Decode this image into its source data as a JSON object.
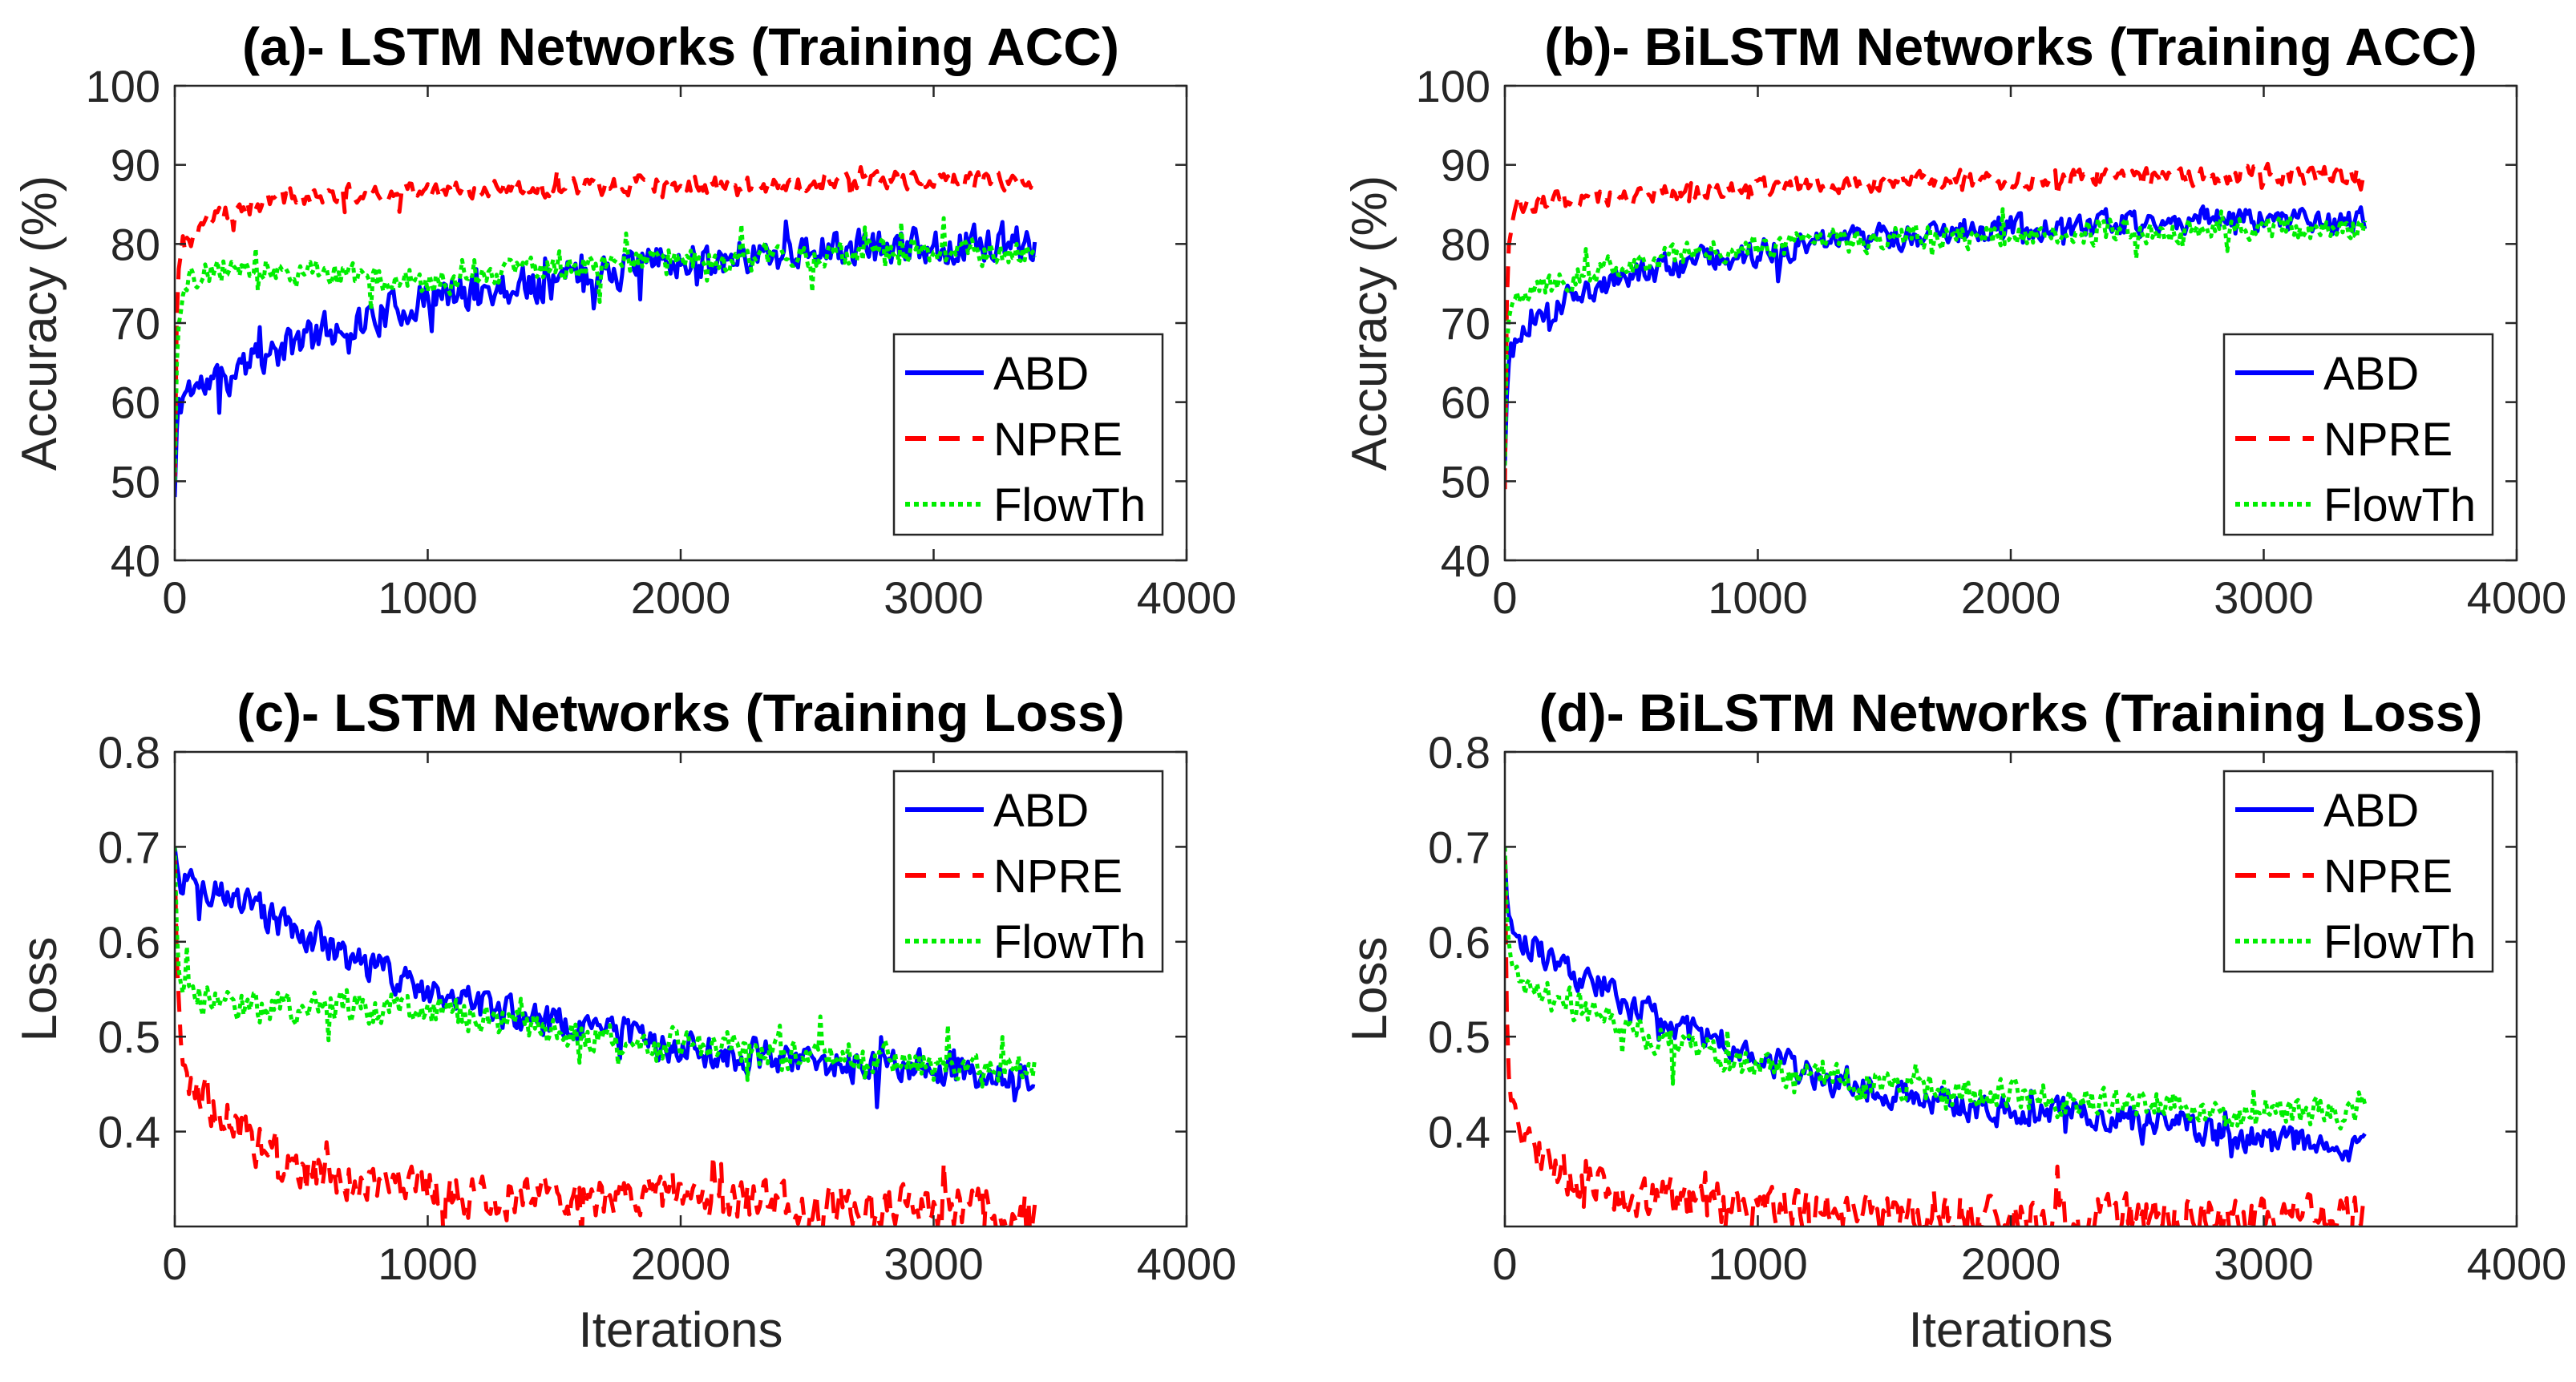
{
  "chart_data": [
    {
      "id": "a",
      "type": "line",
      "title": "(a)- LSTM Networks (Training ACC)",
      "xlabel": "",
      "ylabel": "Accuracy (%)",
      "xlim": [
        0,
        4000
      ],
      "ylim": [
        40,
        100
      ],
      "xticks": [
        "0",
        "1000",
        "2000",
        "3000",
        "4000"
      ],
      "yticks": [
        "40",
        "50",
        "60",
        "70",
        "80",
        "90",
        "100"
      ],
      "legend_position": "bottom-right",
      "grid": false,
      "x": [
        0,
        10,
        25,
        50,
        100,
        200,
        300,
        400,
        500,
        600,
        700,
        800,
        1000,
        1200,
        1400,
        1600,
        1800,
        2000,
        2200,
        2400,
        2600,
        2800,
        3000,
        3200,
        3400
      ],
      "series": [
        {
          "name": "ABD",
          "color": "#0000FF",
          "dash": "solid",
          "noise": 3.2,
          "seed": 11,
          "values": [
            48,
            58,
            60,
            62,
            62,
            63,
            65,
            66,
            68,
            69,
            70,
            71,
            73,
            74,
            75,
            76,
            77,
            78,
            78.5,
            79,
            79.2,
            79.5,
            79.8,
            80,
            80
          ]
        },
        {
          "name": "NPRE",
          "color": "#FF0000",
          "dash": "dashed",
          "noise": 1.6,
          "seed": 23,
          "values": [
            50,
            76,
            79,
            80,
            82,
            84,
            85,
            85.5,
            86,
            86,
            86.5,
            86.5,
            87,
            87,
            87,
            87,
            87.5,
            87.5,
            87.5,
            87.5,
            88,
            88,
            88,
            88,
            88
          ]
        },
        {
          "name": "FlowTh",
          "color": "#00EE00",
          "dash": "dotted",
          "noise": 2.2,
          "seed": 37,
          "values": [
            50,
            70,
            73,
            75,
            76,
            77,
            77,
            77,
            77,
            76,
            76,
            75.5,
            75,
            76,
            76.5,
            77,
            77.5,
            78,
            78,
            78.5,
            78.5,
            79,
            79,
            79,
            79
          ]
        }
      ]
    },
    {
      "id": "b",
      "type": "line",
      "title": "(b)- BiLSTM Networks (Training ACC)",
      "xlabel": "",
      "ylabel": "Accuracy (%)",
      "xlim": [
        0,
        4000
      ],
      "ylim": [
        40,
        100
      ],
      "xticks": [
        "0",
        "1000",
        "2000",
        "3000",
        "4000"
      ],
      "yticks": [
        "40",
        "50",
        "60",
        "70",
        "80",
        "90",
        "100"
      ],
      "legend_position": "bottom-right",
      "grid": false,
      "x": [
        0,
        10,
        25,
        50,
        100,
        200,
        300,
        400,
        500,
        600,
        700,
        800,
        1000,
        1200,
        1400,
        1600,
        1800,
        2000,
        2200,
        2400,
        2600,
        2800,
        3000,
        3200,
        3400
      ],
      "series": [
        {
          "name": "ABD",
          "color": "#0000FF",
          "dash": "solid",
          "noise": 2.3,
          "seed": 41,
          "values": [
            52,
            62,
            66,
            68,
            70,
            72,
            74,
            75,
            76,
            77,
            77.5,
            78,
            79,
            80,
            80.5,
            81,
            81.5,
            82,
            82,
            82.5,
            82.5,
            83,
            83,
            83,
            83
          ]
        },
        {
          "name": "NPRE",
          "color": "#FF0000",
          "dash": "dashed",
          "noise": 1.6,
          "seed": 53,
          "values": [
            49,
            80,
            83,
            85,
            85,
            85.5,
            86,
            86,
            86,
            86.5,
            86.5,
            87,
            87,
            87.5,
            87.5,
            88,
            88,
            88,
            88.5,
            88.5,
            88.5,
            88.5,
            89,
            88.5,
            88
          ]
        },
        {
          "name": "FlowTh",
          "color": "#00EE00",
          "dash": "dotted",
          "noise": 2.0,
          "seed": 67,
          "values": [
            52,
            70,
            72,
            73,
            74,
            75,
            76,
            77,
            77.5,
            78,
            78.5,
            79,
            79.5,
            80,
            80.5,
            81,
            81,
            81,
            81.5,
            81.5,
            81.5,
            82,
            82,
            82,
            82
          ]
        }
      ]
    },
    {
      "id": "c",
      "type": "line",
      "title": "(c)- LSTM Networks (Training Loss)",
      "xlabel": "Iterations",
      "ylabel": "Loss",
      "xlim": [
        0,
        4000
      ],
      "ylim": [
        0.3,
        0.8
      ],
      "xticks": [
        "0",
        "1000",
        "2000",
        "3000",
        "4000"
      ],
      "yticks": [
        "0.4",
        "0.5",
        "0.6",
        "0.7",
        "0.8"
      ],
      "legend_position": "top-right",
      "grid": false,
      "x": [
        0,
        10,
        25,
        50,
        100,
        200,
        300,
        400,
        500,
        600,
        700,
        800,
        1000,
        1200,
        1400,
        1600,
        1800,
        2000,
        2200,
        2400,
        2600,
        2800,
        3000,
        3200,
        3400
      ],
      "series": [
        {
          "name": "ABD",
          "color": "#0000FF",
          "dash": "solid",
          "noise": 0.024,
          "seed": 71,
          "values": [
            0.7,
            0.67,
            0.66,
            0.66,
            0.65,
            0.65,
            0.64,
            0.62,
            0.61,
            0.6,
            0.58,
            0.57,
            0.55,
            0.53,
            0.52,
            0.51,
            0.5,
            0.49,
            0.48,
            0.48,
            0.47,
            0.47,
            0.47,
            0.46,
            0.46
          ]
        },
        {
          "name": "NPRE",
          "color": "#FF0000",
          "dash": "dashed",
          "noise": 0.032,
          "seed": 83,
          "values": [
            0.69,
            0.55,
            0.5,
            0.46,
            0.44,
            0.41,
            0.39,
            0.37,
            0.36,
            0.35,
            0.35,
            0.34,
            0.34,
            0.33,
            0.33,
            0.33,
            0.33,
            0.33,
            0.33,
            0.32,
            0.32,
            0.32,
            0.32,
            0.32,
            0.32
          ]
        },
        {
          "name": "FlowTh",
          "color": "#00EE00",
          "dash": "dotted",
          "noise": 0.022,
          "seed": 97,
          "values": [
            0.7,
            0.58,
            0.56,
            0.55,
            0.54,
            0.53,
            0.53,
            0.53,
            0.53,
            0.53,
            0.53,
            0.53,
            0.53,
            0.52,
            0.51,
            0.5,
            0.5,
            0.49,
            0.49,
            0.48,
            0.48,
            0.48,
            0.47,
            0.47,
            0.47
          ]
        }
      ]
    },
    {
      "id": "d",
      "type": "line",
      "title": "(d)- BiLSTM Networks (Training Loss)",
      "xlabel": "Iterations",
      "ylabel": "Loss",
      "xlim": [
        0,
        4000
      ],
      "ylim": [
        0.3,
        0.8
      ],
      "xticks": [
        "0",
        "1000",
        "2000",
        "3000",
        "4000"
      ],
      "yticks": [
        "0.4",
        "0.5",
        "0.6",
        "0.7",
        "0.8"
      ],
      "legend_position": "top-right",
      "grid": false,
      "x": [
        0,
        10,
        25,
        50,
        100,
        200,
        300,
        400,
        500,
        600,
        700,
        800,
        1000,
        1200,
        1400,
        1600,
        1800,
        2000,
        2200,
        2400,
        2600,
        2800,
        3000,
        3200,
        3400
      ],
      "series": [
        {
          "name": "ABD",
          "color": "#0000FF",
          "dash": "solid",
          "noise": 0.022,
          "seed": 101,
          "values": [
            0.69,
            0.64,
            0.62,
            0.61,
            0.6,
            0.58,
            0.56,
            0.55,
            0.53,
            0.52,
            0.51,
            0.5,
            0.48,
            0.46,
            0.45,
            0.44,
            0.43,
            0.42,
            0.42,
            0.41,
            0.41,
            0.4,
            0.39,
            0.39,
            0.38
          ]
        },
        {
          "name": "NPRE",
          "color": "#FF0000",
          "dash": "dashed",
          "noise": 0.03,
          "seed": 113,
          "values": [
            0.69,
            0.48,
            0.43,
            0.4,
            0.38,
            0.36,
            0.35,
            0.34,
            0.33,
            0.33,
            0.33,
            0.32,
            0.32,
            0.32,
            0.32,
            0.31,
            0.31,
            0.31,
            0.31,
            0.31,
            0.31,
            0.31,
            0.31,
            0.31,
            0.31
          ]
        },
        {
          "name": "FlowTh",
          "color": "#00EE00",
          "dash": "dotted",
          "noise": 0.022,
          "seed": 127,
          "values": [
            0.7,
            0.6,
            0.57,
            0.56,
            0.55,
            0.54,
            0.53,
            0.52,
            0.51,
            0.5,
            0.49,
            0.48,
            0.47,
            0.46,
            0.45,
            0.45,
            0.44,
            0.44,
            0.43,
            0.43,
            0.43,
            0.42,
            0.42,
            0.42,
            0.42
          ]
        }
      ]
    }
  ]
}
